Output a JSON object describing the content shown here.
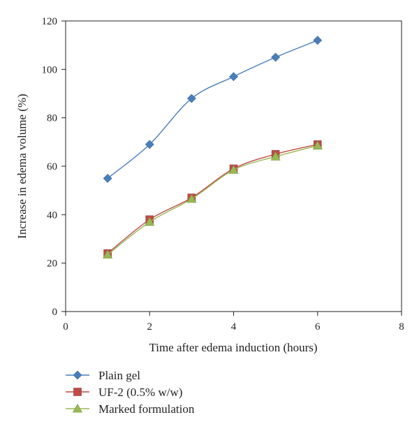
{
  "chart_data": {
    "type": "line",
    "title": "",
    "xlabel": "Time after edema induction (hours)",
    "ylabel": "Increase in edema volume (%)",
    "xlim": [
      0,
      8
    ],
    "ylim": [
      0,
      120
    ],
    "xticks": [
      0,
      2,
      4,
      6,
      8
    ],
    "yticks": [
      0,
      20,
      40,
      60,
      80,
      100,
      120
    ],
    "grid": false,
    "legend_position": "bottom",
    "x": [
      1,
      2,
      3,
      4,
      5,
      6
    ],
    "series": [
      {
        "name": "Plain gel",
        "marker": "diamond",
        "color": "#4a7ebb",
        "values": [
          55,
          69,
          88,
          97,
          105,
          112
        ]
      },
      {
        "name": "UF-2 (0.5% w/w)",
        "marker": "square",
        "color": "#be4b48",
        "values": [
          24,
          38,
          47,
          59,
          65,
          69
        ]
      },
      {
        "name": "Marked formulation",
        "marker": "triangle",
        "color": "#98b954",
        "values": [
          23.5,
          37,
          46.5,
          58.5,
          64,
          68.5
        ]
      }
    ]
  }
}
